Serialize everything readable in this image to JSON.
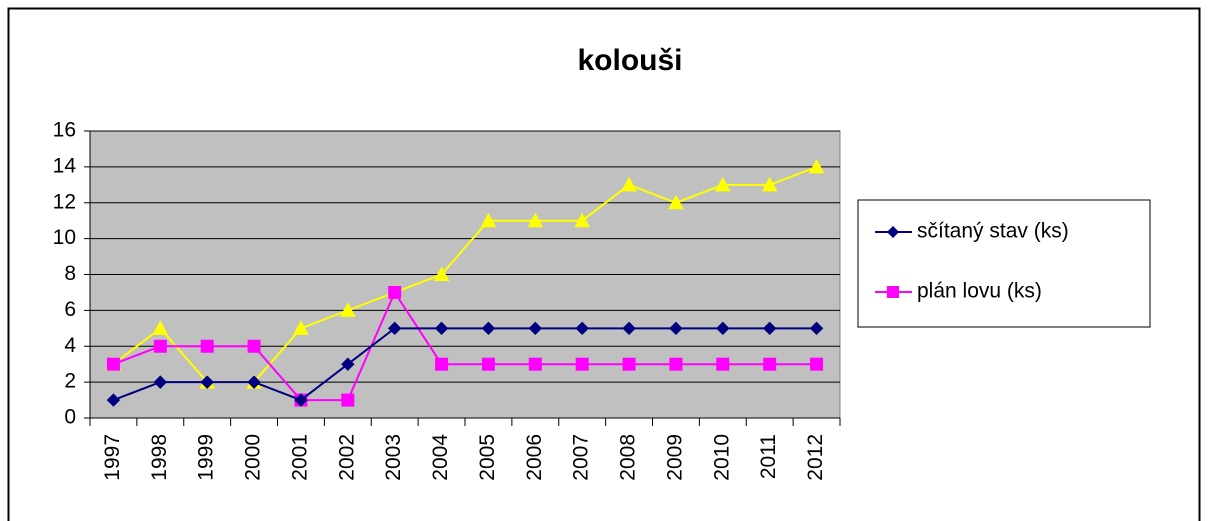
{
  "chart_data": {
    "type": "line",
    "title": "kolouši",
    "categories": [
      "1997",
      "1998",
      "1999",
      "2000",
      "2001",
      "2002",
      "2003",
      "2004",
      "2005",
      "2006",
      "2007",
      "2008",
      "2009",
      "2010",
      "2011",
      "2012"
    ],
    "series": [
      {
        "name": "sčítaný stav (ks)",
        "color": "#000080",
        "marker": "diamond",
        "values": [
          1,
          2,
          2,
          2,
          1,
          3,
          5,
          5,
          5,
          5,
          5,
          5,
          5,
          5,
          5,
          5
        ]
      },
      {
        "name": "plán lovu (ks)",
        "color": "#ff00ff",
        "marker": "square",
        "values": [
          3,
          4,
          4,
          4,
          1,
          1,
          7,
          3,
          3,
          3,
          3,
          3,
          3,
          3,
          3,
          3
        ]
      },
      {
        "color": "#ffff00",
        "marker": "triangle",
        "values": [
          3,
          5,
          2,
          2,
          5,
          6,
          7,
          8,
          11,
          11,
          11,
          13,
          12,
          13,
          13,
          14
        ]
      }
    ],
    "ylim": [
      0,
      16
    ],
    "yticks": [
      0,
      2,
      4,
      6,
      8,
      10,
      12,
      14,
      16
    ],
    "grid": true,
    "legend": "right"
  }
}
